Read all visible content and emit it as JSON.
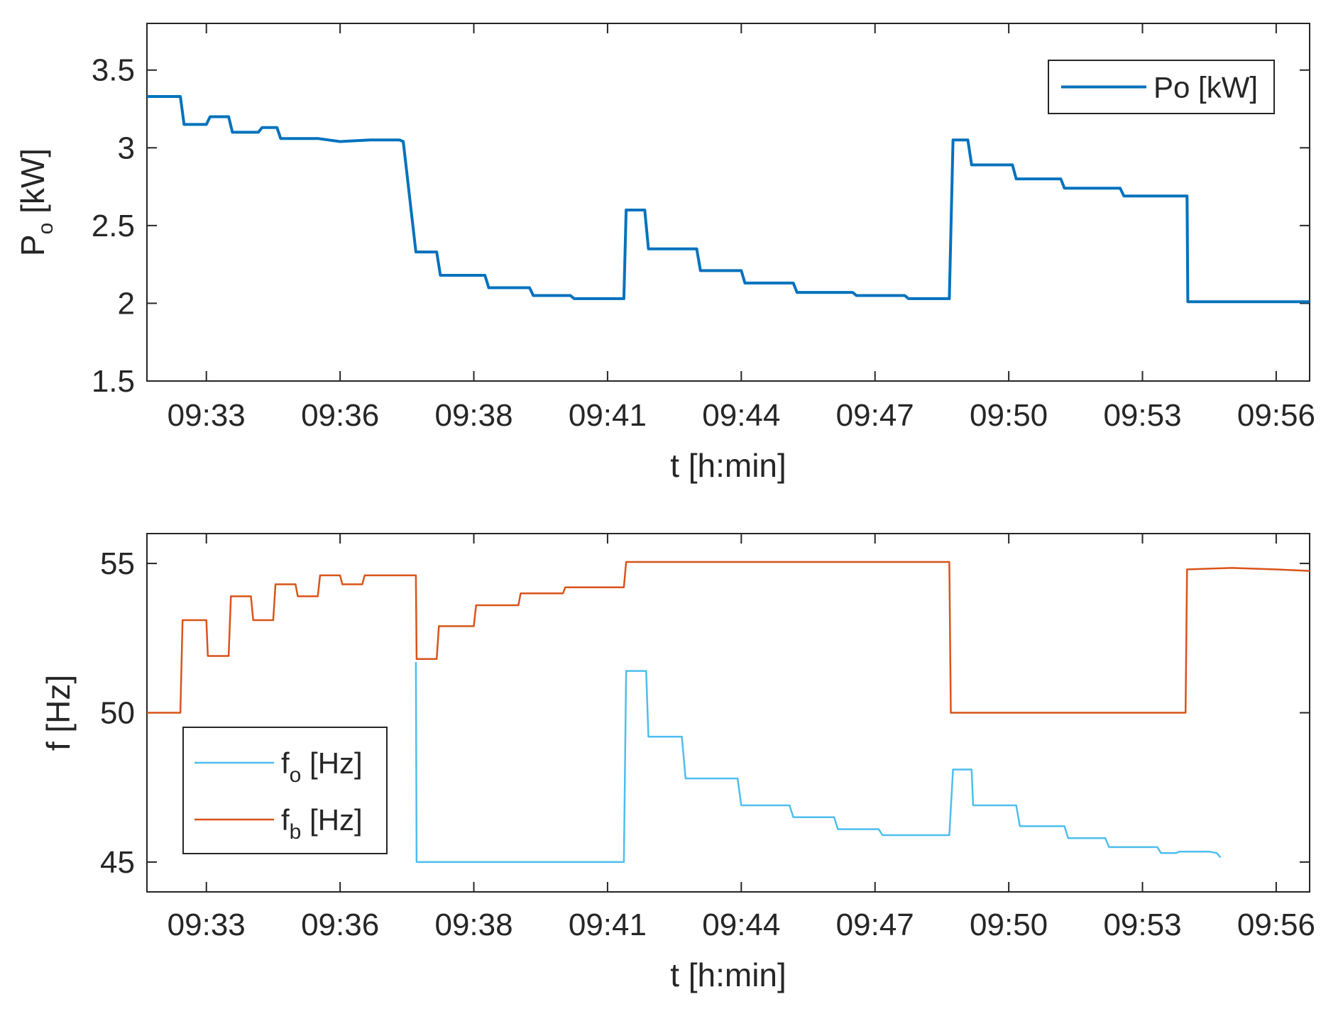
{
  "chart_data": [
    {
      "type": "line",
      "title": "",
      "xlabel": "t [h:min]",
      "ylabel": {
        "main": "P",
        "sub": "o",
        "unit": " [kW]"
      },
      "xlim": [
        0,
        1565
      ],
      "ylim": [
        1.5,
        3.8
      ],
      "x_unit": "seconds since 09:31:40",
      "x_ticks": [
        {
          "label": "09:33",
          "x": 80
        },
        {
          "label": "09:36",
          "x": 260
        },
        {
          "label": "09:38",
          "x": 440
        },
        {
          "label": "09:41",
          "x": 620
        },
        {
          "label": "09:44",
          "x": 800
        },
        {
          "label": "09:47",
          "x": 980
        },
        {
          "label": "09:50",
          "x": 1160
        },
        {
          "label": "09:53",
          "x": 1340
        },
        {
          "label": "09:56",
          "x": 1520
        }
      ],
      "y_ticks": [
        {
          "label": "1.5",
          "y": 1.5
        },
        {
          "label": "2",
          "y": 2
        },
        {
          "label": "2.5",
          "y": 2.5
        },
        {
          "label": "3",
          "y": 3
        },
        {
          "label": "3.5",
          "y": 3.5
        }
      ],
      "legend": {
        "position": "top-right",
        "entries": [
          {
            "label": "Po [kW]",
            "color": "#0072BD"
          }
        ]
      },
      "series": [
        {
          "name": "Po [kW]",
          "color": "#0072BD",
          "step": true,
          "points": [
            [
              0,
              3.33
            ],
            [
              45,
              3.33
            ],
            [
              50,
              3.15
            ],
            [
              80,
              3.15
            ],
            [
              85,
              3.2
            ],
            [
              110,
              3.2
            ],
            [
              115,
              3.1
            ],
            [
              150,
              3.1
            ],
            [
              155,
              3.13
            ],
            [
              175,
              3.13
            ],
            [
              180,
              3.06
            ],
            [
              230,
              3.06
            ],
            [
              260,
              3.04
            ],
            [
              300,
              3.05
            ],
            [
              340,
              3.05
            ],
            [
              345,
              3.04
            ],
            [
              362,
              2.33
            ],
            [
              390,
              2.33
            ],
            [
              395,
              2.18
            ],
            [
              455,
              2.18
            ],
            [
              460,
              2.1
            ],
            [
              515,
              2.1
            ],
            [
              520,
              2.05
            ],
            [
              570,
              2.05
            ],
            [
              575,
              2.03
            ],
            [
              642,
              2.03
            ],
            [
              645,
              2.6
            ],
            [
              670,
              2.6
            ],
            [
              675,
              2.35
            ],
            [
              740,
              2.35
            ],
            [
              745,
              2.21
            ],
            [
              800,
              2.21
            ],
            [
              805,
              2.13
            ],
            [
              870,
              2.13
            ],
            [
              875,
              2.07
            ],
            [
              950,
              2.07
            ],
            [
              955,
              2.05
            ],
            [
              1020,
              2.05
            ],
            [
              1025,
              2.03
            ],
            [
              1080,
              2.03
            ],
            [
              1085,
              3.05
            ],
            [
              1105,
              3.05
            ],
            [
              1110,
              2.89
            ],
            [
              1165,
              2.89
            ],
            [
              1170,
              2.8
            ],
            [
              1230,
              2.8
            ],
            [
              1235,
              2.74
            ],
            [
              1310,
              2.74
            ],
            [
              1315,
              2.69
            ],
            [
              1365,
              2.69
            ],
            [
              1375,
              2.69
            ],
            [
              1400,
              2.69
            ],
            [
              1401,
              2.01
            ],
            [
              1565,
              2.01
            ]
          ]
        }
      ]
    },
    {
      "type": "line",
      "title": "",
      "xlabel": "t [h:min]",
      "ylabel": "f [Hz]",
      "xlim": [
        0,
        1565
      ],
      "ylim": [
        44.0,
        56.0
      ],
      "x_unit": "seconds since 09:31:40",
      "x_ticks": [
        {
          "label": "09:33",
          "x": 80
        },
        {
          "label": "09:36",
          "x": 260
        },
        {
          "label": "09:38",
          "x": 440
        },
        {
          "label": "09:41",
          "x": 620
        },
        {
          "label": "09:44",
          "x": 800
        },
        {
          "label": "09:47",
          "x": 980
        },
        {
          "label": "09:50",
          "x": 1160
        },
        {
          "label": "09:53",
          "x": 1340
        },
        {
          "label": "09:56",
          "x": 1520
        }
      ],
      "y_ticks": [
        {
          "label": "45",
          "y": 45
        },
        {
          "label": "50",
          "y": 50
        },
        {
          "label": "55",
          "y": 55
        }
      ],
      "legend": {
        "position": "bottom-left",
        "entries": [
          {
            "main": "f",
            "sub": "o",
            "unit": " [Hz]",
            "color": "#4DBEEE"
          },
          {
            "main": "f",
            "sub": "b",
            "unit": " [Hz]",
            "color": "#D95319"
          }
        ]
      },
      "series": [
        {
          "name": "fo [Hz]",
          "color": "#4DBEEE",
          "step": true,
          "points": [
            [
              362,
              51.7
            ],
            [
              363,
              45.0
            ],
            [
              642,
              45.0
            ],
            [
              645,
              51.4
            ],
            [
              672,
              51.4
            ],
            [
              675,
              49.2
            ],
            [
              720,
              49.2
            ],
            [
              725,
              47.8
            ],
            [
              795,
              47.8
            ],
            [
              800,
              46.9
            ],
            [
              865,
              46.9
            ],
            [
              870,
              46.5
            ],
            [
              925,
              46.5
            ],
            [
              930,
              46.1
            ],
            [
              985,
              46.1
            ],
            [
              990,
              45.9
            ],
            [
              1080,
              45.9
            ],
            [
              1085,
              48.1
            ],
            [
              1110,
              48.1
            ],
            [
              1112,
              46.9
            ],
            [
              1170,
              46.9
            ],
            [
              1175,
              46.2
            ],
            [
              1235,
              46.2
            ],
            [
              1240,
              45.8
            ],
            [
              1290,
              45.8
            ],
            [
              1295,
              45.5
            ],
            [
              1360,
              45.5
            ],
            [
              1365,
              45.3
            ],
            [
              1385,
              45.3
            ],
            [
              1390,
              45.35
            ],
            [
              1430,
              45.35
            ],
            [
              1440,
              45.3
            ],
            [
              1445,
              45.15
            ]
          ]
        },
        {
          "name": "fb [Hz]",
          "color": "#D95319",
          "step": true,
          "points": [
            [
              0,
              50.0
            ],
            [
              45,
              50.0
            ],
            [
              48,
              53.1
            ],
            [
              80,
              53.1
            ],
            [
              82,
              51.9
            ],
            [
              110,
              51.9
            ],
            [
              113,
              53.9
            ],
            [
              140,
              53.9
            ],
            [
              143,
              53.1
            ],
            [
              170,
              53.1
            ],
            [
              173,
              54.3
            ],
            [
              200,
              54.3
            ],
            [
              203,
              53.9
            ],
            [
              230,
              53.9
            ],
            [
              233,
              54.6
            ],
            [
              260,
              54.6
            ],
            [
              263,
              54.3
            ],
            [
              290,
              54.3
            ],
            [
              293,
              54.6
            ],
            [
              362,
              54.6
            ],
            [
              363,
              51.8
            ],
            [
              390,
              51.8
            ],
            [
              393,
              52.9
            ],
            [
              440,
              52.9
            ],
            [
              443,
              53.6
            ],
            [
              500,
              53.6
            ],
            [
              503,
              54.0
            ],
            [
              560,
              54.0
            ],
            [
              563,
              54.2
            ],
            [
              642,
              54.2
            ],
            [
              645,
              55.05
            ],
            [
              1080,
              55.05
            ],
            [
              1082,
              50.0
            ],
            [
              1398,
              50.0
            ],
            [
              1400,
              54.8
            ],
            [
              1460,
              54.85
            ],
            [
              1520,
              54.8
            ],
            [
              1565,
              54.75
            ]
          ]
        }
      ]
    }
  ]
}
